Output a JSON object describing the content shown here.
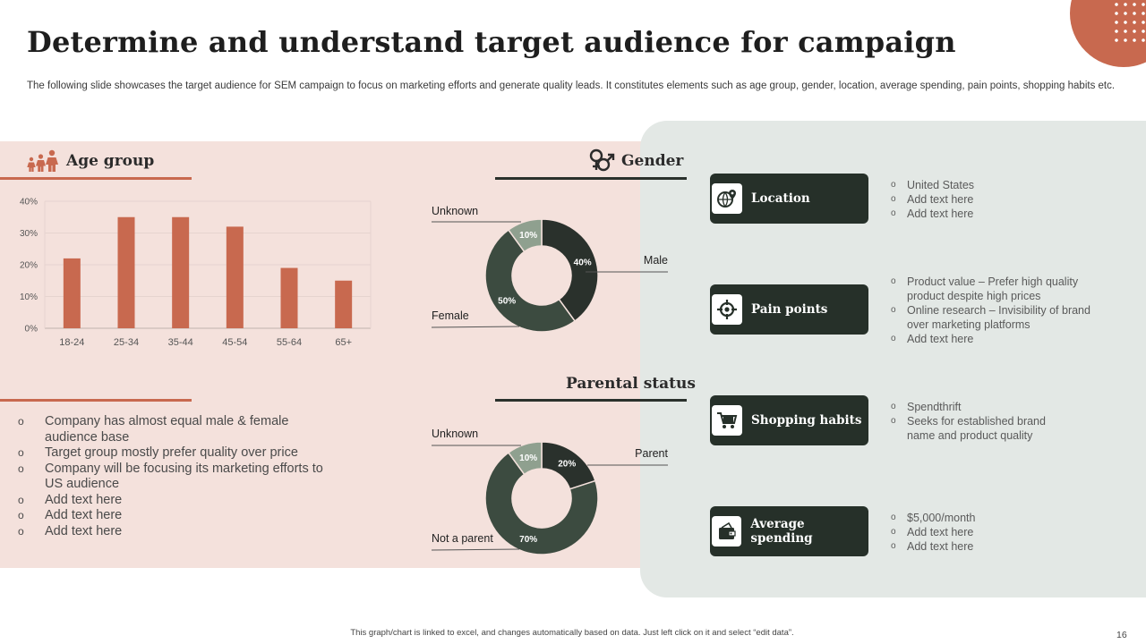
{
  "title": "Determine and understand target audience for campaign",
  "subtitle": "The following slide showcases the target audience for SEM campaign to focus on marketing efforts and generate quality leads. It constitutes elements such as age group, gender, location, average spending, pain points, shopping habits etc.",
  "sections": {
    "age_group": "Age group",
    "gender": "Gender",
    "parental_status": "Parental status"
  },
  "colors": {
    "accent": "#c8694f",
    "dark": "#263029",
    "pie_dark": "#2a312c",
    "pie_mid": "#3c4b40",
    "pie_light": "#8fa08f",
    "pink_bg": "#f4e1dc",
    "gray_bg": "#e3e8e5"
  },
  "chart_data": [
    {
      "type": "bar",
      "categories": [
        "18-24",
        "25-34",
        "35-44",
        "45-54",
        "55-64",
        "65+"
      ],
      "values": [
        22,
        35,
        35,
        32,
        19,
        15
      ],
      "ylim": [
        0,
        40
      ],
      "yticks": [
        "0%",
        "10%",
        "20%",
        "30%",
        "40%"
      ],
      "grid": true,
      "color": "#c8694f"
    },
    {
      "type": "pie",
      "variant": "donut",
      "slices": [
        {
          "label": "Male",
          "value": 40,
          "value_label": "40%",
          "color": "#2a312c"
        },
        {
          "label": "Female",
          "value": 50,
          "value_label": "50%",
          "color": "#3c4b40"
        },
        {
          "label": "Unknown",
          "value": 10,
          "value_label": "10%",
          "color": "#8fa08f"
        }
      ]
    },
    {
      "type": "pie",
      "variant": "donut",
      "slices": [
        {
          "label": "Parent",
          "value": 20,
          "value_label": "20%",
          "color": "#2a312c"
        },
        {
          "label": "Not a parent",
          "value": 70,
          "value_label": "70%",
          "color": "#3c4b40"
        },
        {
          "label": "Unknown",
          "value": 10,
          "value_label": "10%",
          "color": "#8fa08f"
        }
      ]
    }
  ],
  "insights": [
    "Company has almost equal male & female audience base",
    "Target group mostly prefer quality over price",
    "Company will be focusing its marketing efforts to US audience",
    "Add text here",
    "Add text here",
    "Add text here"
  ],
  "categories": [
    {
      "label": "Location",
      "icon": "globe-location-icon",
      "items": [
        "United States",
        "Add text here",
        "Add text here"
      ]
    },
    {
      "label": "Pain points",
      "icon": "target-icon",
      "items": [
        "Product value  – Prefer high quality product despite high prices",
        "Online research – Invisibility of brand over  marketing platforms",
        "Add text here"
      ]
    },
    {
      "label": "Shopping habits",
      "icon": "shopping-cart-icon",
      "items": [
        "Spendthrift",
        "Seeks for established brand name and  product quality"
      ]
    },
    {
      "label": "Average spending",
      "icon": "wallet-icon",
      "items": [
        "$5,000/month",
        "Add text here",
        "Add text here"
      ]
    }
  ],
  "footer": "This graph/chart is linked to excel, and changes automatically based on data. Just left click on it and select “edit data”.",
  "page_number": "16"
}
